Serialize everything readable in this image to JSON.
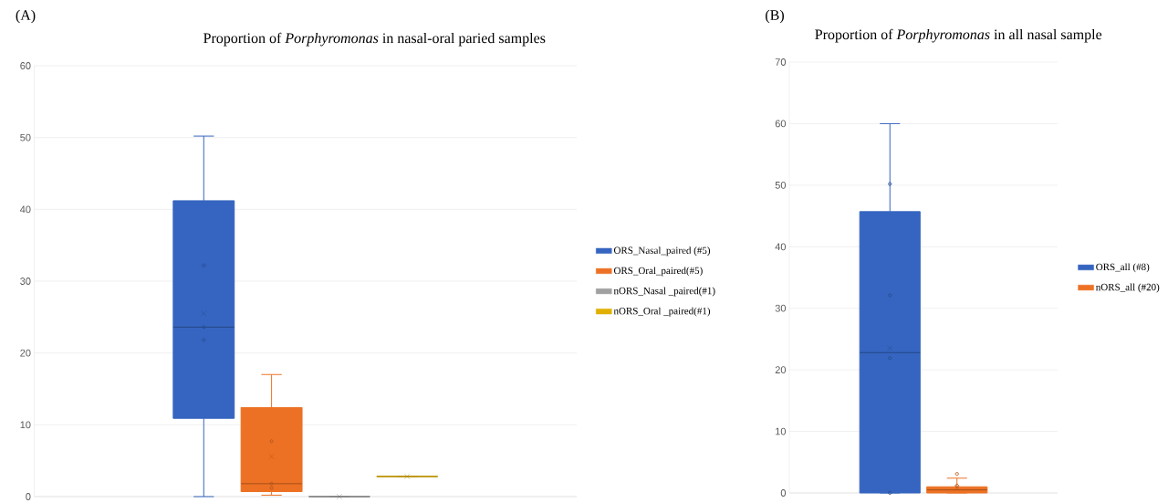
{
  "chart_data": [
    {
      "type": "box",
      "title": "Proportion of *Porphyromonas* in nasal-oral paried samples",
      "annotations": [
        "(A)"
      ],
      "categories": [
        null
      ],
      "ylim": [
        0,
        60
      ],
      "yticks": [
        0,
        10,
        20,
        30,
        40,
        50,
        60
      ],
      "grid": "y",
      "legend": "right",
      "marker": "circle",
      "series": [
        {
          "name": "ORS_Nasal_paired (#5)",
          "color": "#3565c0",
          "boxes": [
            {
              "low": 0,
              "q1": 10.9,
              "median": 23.6,
              "q3": 41.2,
              "high": 50.2,
              "mean": 25.5,
              "outliers": [
                32.2,
                23.6,
                21.8
              ]
            }
          ]
        },
        {
          "name": "ORS_Oral_paired(#5)",
          "color": "#ed7124",
          "boxes": [
            {
              "low": 0.2,
              "q1": 0.7,
              "median": 1.8,
              "q3": 12.4,
              "high": 17.0,
              "mean": 5.6,
              "outliers": [
                7.7,
                1.8,
                1.2
              ]
            }
          ]
        },
        {
          "name": "nORS_Nasal _paired(#1)",
          "color": "#a0a0a0",
          "boxes": [
            {
              "low": 0,
              "q1": 0,
              "median": 0,
              "q3": 0,
              "high": 0,
              "mean": 0
            }
          ]
        },
        {
          "name": "nORS_Oral _paired(#1)",
          "color": "#e0b000",
          "boxes": [
            {
              "low": 2.8,
              "q1": 2.8,
              "median": 2.8,
              "q3": 2.8,
              "high": 2.8,
              "mean": 2.8
            }
          ]
        }
      ]
    },
    {
      "type": "box",
      "title": "Proportion of *Porphyromonas* in all nasal sample",
      "annotations": [
        "(B)"
      ],
      "categories": [
        null
      ],
      "ylim": [
        0,
        70
      ],
      "yticks": [
        0,
        10,
        20,
        30,
        40,
        50,
        60,
        70
      ],
      "grid": "y",
      "legend": "right",
      "marker": "circle",
      "series": [
        {
          "name": "ORS_all (#8)",
          "color": "#3565c0",
          "boxes": [
            {
              "low": 0,
              "q1": 0,
              "median": 22.8,
              "q3": 45.7,
              "high": 60.0,
              "mean": 23.5,
              "outliers": [
                50.2,
                32.1,
                21.9,
                0
              ]
            }
          ]
        },
        {
          "name": "nORS_all (#20)",
          "color": "#ed7124",
          "boxes": [
            {
              "low": 0,
              "q1": 0,
              "median": 0.5,
              "q3": 1.0,
              "high": 2.4,
              "mean": 0.8,
              "outliers": [
                3.1,
                1.2
              ]
            }
          ]
        }
      ]
    }
  ]
}
